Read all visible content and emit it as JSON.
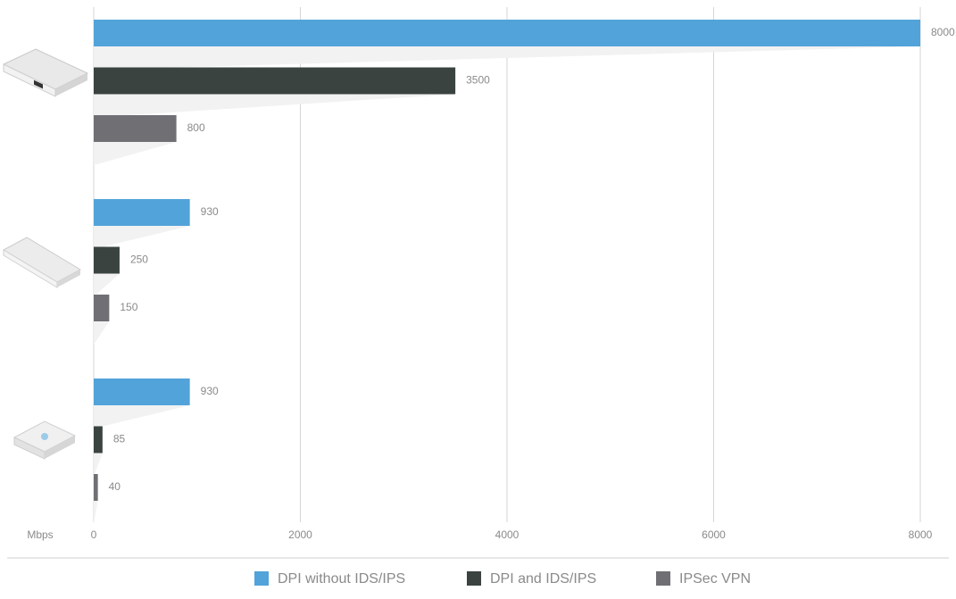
{
  "chart_data": {
    "type": "bar",
    "orientation": "horizontal",
    "categories": [
      null,
      null,
      null
    ],
    "series": [
      {
        "name": "DPI without IDS/IPS",
        "color": "#52a3d9",
        "values": [
          8000,
          930,
          930
        ]
      },
      {
        "name": "DPI and IDS/IPS",
        "color": "#3a4340",
        "values": [
          3500,
          250,
          85
        ]
      },
      {
        "name": "IPSec VPN",
        "color": "#6f6f74",
        "values": [
          800,
          150,
          40
        ]
      }
    ],
    "xlabel": "Mbps",
    "xlim": [
      0,
      8000
    ],
    "xticks": [
      0,
      2000,
      4000,
      6000,
      8000
    ],
    "grid": true
  }
}
